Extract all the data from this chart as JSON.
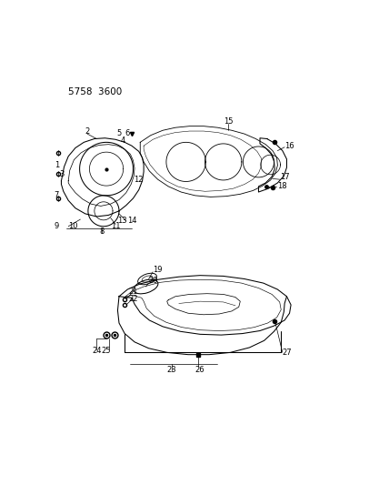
{
  "title_code": "5758  3600",
  "background_color": "#ffffff",
  "line_color": "#000000",
  "title_fontsize": 7.5,
  "label_fontsize": 6,
  "lw": 0.75
}
